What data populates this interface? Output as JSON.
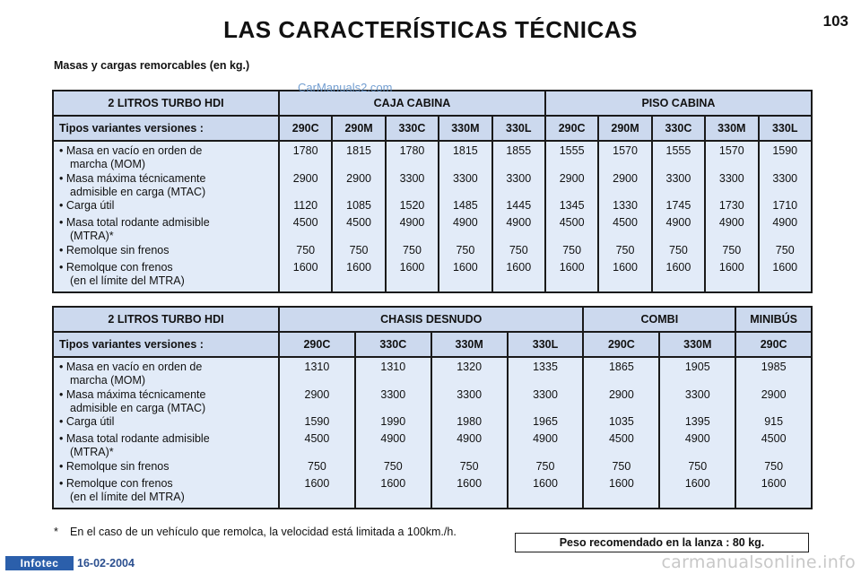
{
  "header": {
    "title": "LAS CARACTERÍSTICAS TÉCNICAS",
    "page_number": "103"
  },
  "subtitle": "Masas y cargas remorcables (en kg.)",
  "watermark_top": "CarManuals2.com",
  "row_labels": [
    {
      "main": "• Masa en vacío en orden de",
      "cont": "marcha (MOM)"
    },
    {
      "main": "• Masa máxima técnicamente",
      "cont": "admisible en carga (MTAC)"
    },
    {
      "main": "• Carga útil",
      "cont": ""
    },
    {
      "main": "• Masa total rodante admisible",
      "cont": "(MTRA)*"
    },
    {
      "main": "• Remolque sin frenos",
      "cont": ""
    },
    {
      "main": "• Remolque con frenos",
      "cont": "(en el límite del MTRA)"
    }
  ],
  "table1": {
    "engine": "2 LITROS TURBO HDI",
    "groups": [
      "CAJA CABINA",
      "PISO CABINA"
    ],
    "types_label": "Tipos variantes versiones :",
    "versions": [
      "290C",
      "290M",
      "330C",
      "330M",
      "330L",
      "290C",
      "290M",
      "330C",
      "330M",
      "330L"
    ],
    "columns": [
      [
        "1780",
        "2900",
        "1120",
        "4500",
        "750",
        "1600"
      ],
      [
        "1815",
        "2900",
        "1085",
        "4500",
        "750",
        "1600"
      ],
      [
        "1780",
        "3300",
        "1520",
        "4900",
        "750",
        "1600"
      ],
      [
        "1815",
        "3300",
        "1485",
        "4900",
        "750",
        "1600"
      ],
      [
        "1855",
        "3300",
        "1445",
        "4900",
        "750",
        "1600"
      ],
      [
        "1555",
        "2900",
        "1345",
        "4500",
        "750",
        "1600"
      ],
      [
        "1570",
        "2900",
        "1330",
        "4500",
        "750",
        "1600"
      ],
      [
        "1555",
        "3300",
        "1745",
        "4900",
        "750",
        "1600"
      ],
      [
        "1570",
        "3300",
        "1730",
        "4900",
        "750",
        "1600"
      ],
      [
        "1590",
        "3300",
        "1710",
        "4900",
        "750",
        "1600"
      ]
    ]
  },
  "table2": {
    "engine": "2 LITROS TURBO HDI",
    "groups": [
      "CHASIS DESNUDO",
      "COMBI",
      "MINIBÚS"
    ],
    "types_label": "Tipos variantes versiones :",
    "versions": [
      "290C",
      "330C",
      "330M",
      "330L",
      "290C",
      "330M",
      "290C"
    ],
    "columns": [
      [
        "1310",
        "2900",
        "1590",
        "4500",
        "750",
        "1600"
      ],
      [
        "1310",
        "3300",
        "1990",
        "4900",
        "750",
        "1600"
      ],
      [
        "1320",
        "3300",
        "1980",
        "4900",
        "750",
        "1600"
      ],
      [
        "1335",
        "3300",
        "1965",
        "4900",
        "750",
        "1600"
      ],
      [
        "1865",
        "2900",
        "1035",
        "4500",
        "750",
        "1600"
      ],
      [
        "1905",
        "3300",
        "1395",
        "4900",
        "750",
        "1600"
      ],
      [
        "1985",
        "2900",
        "915",
        "4500",
        "750",
        "1600"
      ]
    ]
  },
  "footnote": {
    "star": "*",
    "text": "En el caso de un vehículo que remolca, la velocidad está limitada a 100km./h."
  },
  "note": "Peso recomendado en la lanza : 80 kg.",
  "footer": {
    "logo": "Infotec",
    "date": "16-02-2004",
    "watermark": "carmanualsonline.info"
  }
}
